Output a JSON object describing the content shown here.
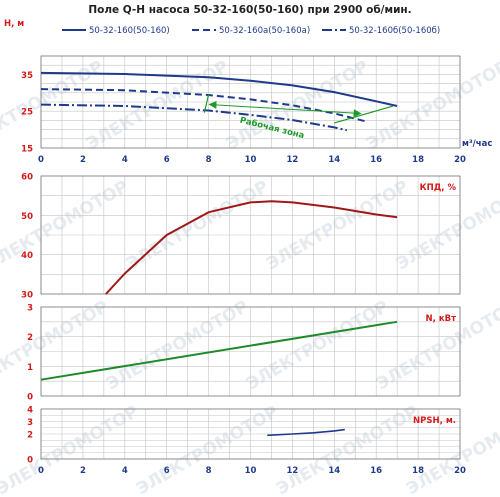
{
  "title": "Поле Q-H насоса 50-32-160(50-160) при 2900 об/мин.",
  "watermark": "ЭЛЕКТРОМОТОР",
  "colors": {
    "h_curves": "#1f3a8a",
    "zone": "#1f9a2a",
    "kpd": "#a01818",
    "power": "#1f8a2a",
    "npsh": "#1f3a8a",
    "grid": "#c4c4c4",
    "tick": "#d41a1a",
    "xtick": "#1f3a8a"
  },
  "chart_data": [
    {
      "type": "line",
      "ylabel": "H, м",
      "xlabel": "м³/час",
      "xlim": [
        0,
        20
      ],
      "ylim": [
        15,
        40
      ],
      "x_ticks": [
        0,
        2,
        4,
        6,
        8,
        10,
        12,
        14,
        16,
        18,
        20
      ],
      "y_ticks": [
        15,
        25,
        35
      ],
      "grid": true,
      "legend": "top",
      "series": [
        {
          "name": "50-32-160(50-160)",
          "style": "solid",
          "x": [
            0,
            4,
            8,
            10,
            12,
            14,
            16,
            17
          ],
          "y": [
            35.4,
            35.1,
            34.2,
            33.3,
            32.0,
            30.2,
            27.7,
            26.4
          ]
        },
        {
          "name": "50-32-160а(50-160а)",
          "style": "dash",
          "x": [
            0,
            4,
            8,
            10,
            12,
            14,
            15.6
          ],
          "y": [
            31.0,
            30.7,
            29.4,
            28.2,
            26.6,
            24.4,
            22.1
          ]
        },
        {
          "name": "50-32-160б(50-160б)",
          "style": "dashdot",
          "x": [
            0,
            4,
            8,
            10,
            12,
            14,
            14.6
          ],
          "y": [
            26.8,
            26.4,
            25.2,
            24.0,
            22.6,
            20.6,
            19.8
          ]
        }
      ],
      "annotations": [
        {
          "text": "Рабочая зона",
          "type": "zone",
          "x_left": [
            8,
            7.8
          ],
          "y_left": [
            29.6,
            24.6
          ],
          "x_right": [
            16.8,
            14
          ],
          "y_right": [
            26.4,
            21.8
          ]
        }
      ]
    },
    {
      "type": "line",
      "ylabel": "КПД, %",
      "xlim": [
        0,
        20
      ],
      "ylim": [
        30,
        60
      ],
      "y_ticks": [
        30,
        40,
        50,
        60
      ],
      "grid": true,
      "series": [
        {
          "name": "КПД",
          "x": [
            3.1,
            4,
            6,
            8,
            10,
            11,
            12,
            14,
            16,
            17
          ],
          "y": [
            30,
            35.2,
            45,
            50.8,
            53.3,
            53.6,
            53.3,
            52.0,
            50.2,
            49.5
          ]
        }
      ]
    },
    {
      "type": "line",
      "ylabel": "N, кВт",
      "xlim": [
        0,
        20
      ],
      "ylim": [
        0,
        3
      ],
      "y_ticks": [
        0,
        1,
        2,
        3
      ],
      "grid": true,
      "series": [
        {
          "name": "N",
          "x": [
            0,
            17
          ],
          "y": [
            0.55,
            2.5
          ]
        }
      ]
    },
    {
      "type": "line",
      "ylabel": "NPSH, м.",
      "xlabel": "",
      "xlim": [
        0,
        20
      ],
      "ylim": [
        0,
        4
      ],
      "x_ticks": [
        0,
        2,
        4,
        6,
        8,
        10,
        12,
        14,
        16,
        18,
        20
      ],
      "y_ticks": [
        0,
        2,
        3,
        4
      ],
      "grid": true,
      "series": [
        {
          "name": "NPSH",
          "x": [
            10.8,
            12,
            13,
            14,
            14.5
          ],
          "y": [
            1.9,
            2.0,
            2.1,
            2.25,
            2.35
          ]
        }
      ]
    }
  ]
}
